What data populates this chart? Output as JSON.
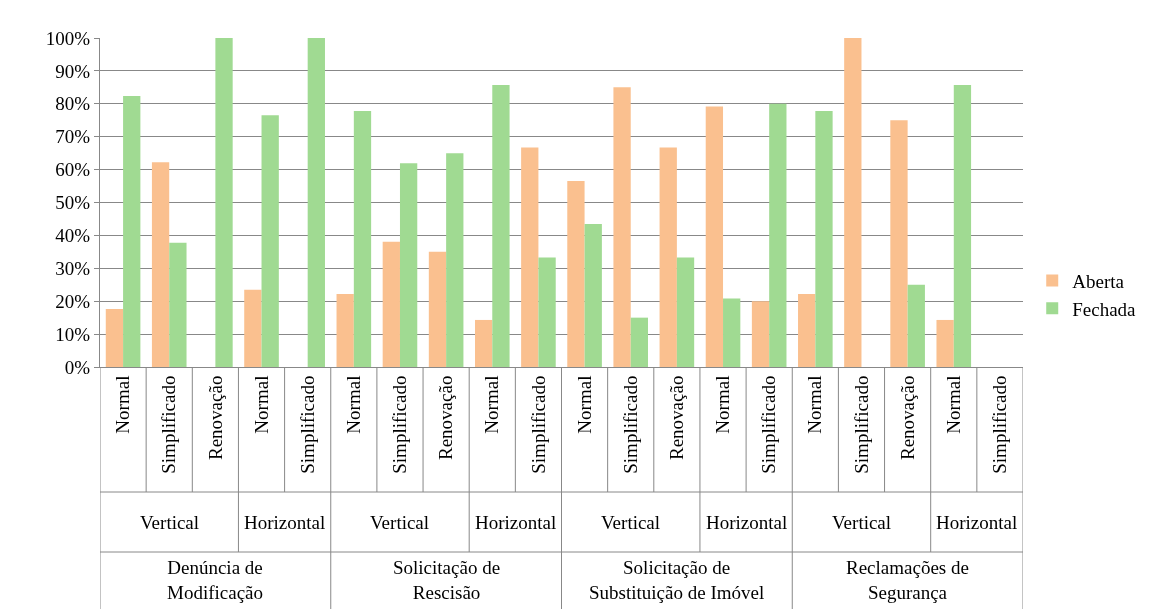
{
  "chart_data": {
    "type": "bar",
    "categories": [
      "Normal",
      "Simplificado",
      "Renovação",
      "Normal",
      "Simplificado",
      "Normal",
      "Simplificado",
      "Renovação",
      "Normal",
      "Simplificado",
      "Normal",
      "Simplificado",
      "Renovação",
      "Normal",
      "Simplificado",
      "Normal",
      "Simplificado",
      "Renovação",
      "Normal",
      "Simplificado"
    ],
    "series": [
      {
        "name": "Aberta",
        "color": "#fac08f",
        "values": [
          17.6,
          62.2,
          0,
          23.5,
          0,
          22.2,
          38.1,
          35,
          14.3,
          66.7,
          56.5,
          85,
          66.7,
          79.2,
          20,
          22.2,
          100,
          75,
          14.3,
          null
        ]
      },
      {
        "name": "Fechada",
        "color": "#a0da92",
        "values": [
          82.4,
          37.8,
          100,
          76.5,
          100,
          77.8,
          61.9,
          65,
          85.7,
          33.3,
          43.5,
          15,
          33.3,
          20.8,
          80,
          77.8,
          0,
          25,
          85.7,
          null
        ]
      }
    ],
    "annotations": [
      "Vertical",
      "Horizontal",
      "Vertical",
      "Horizontal",
      "Vertical",
      "Horizontal",
      "Vertical",
      "Horizontal",
      "Denúncia de Modificação",
      "Solicitação de Rescisão",
      "Solicitação de Substituição de Imóvel",
      "Reclamações de Segurança"
    ],
    "ylim": [
      0,
      100
    ],
    "yticks": [
      {
        "value": 0,
        "label": "0%"
      },
      {
        "value": 10,
        "label": "10%"
      },
      {
        "value": 20,
        "label": "20%"
      },
      {
        "value": 30,
        "label": "30%"
      },
      {
        "value": 40,
        "label": "40%"
      },
      {
        "value": 50,
        "label": "50%"
      },
      {
        "value": 60,
        "label": "60%"
      },
      {
        "value": 70,
        "label": "70%"
      },
      {
        "value": 80,
        "label": "80%"
      },
      {
        "value": 90,
        "label": "90%"
      },
      {
        "value": 100,
        "label": "100%"
      }
    ],
    "grid": "y",
    "legend": "right"
  }
}
